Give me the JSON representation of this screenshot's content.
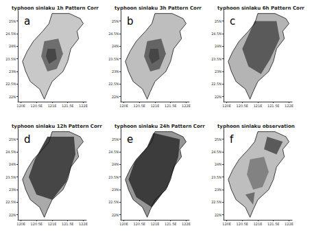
{
  "chart_data": [
    {
      "type": "map",
      "title": "typhoon sinlaku 1h Pattern Corr",
      "annotation": "a",
      "xlim": [
        119.9,
        122.1
      ],
      "ylim": [
        21.8,
        25.4
      ],
      "xticks": [
        {
          "value": 120,
          "label": "120E"
        },
        {
          "value": 120.5,
          "label": "120.5E"
        },
        {
          "value": 121,
          "label": "121E"
        },
        {
          "value": 121.5,
          "label": "121.5E"
        },
        {
          "value": 122,
          "label": "122E"
        }
      ],
      "yticks": [
        {
          "value": 22,
          "label": "22N"
        },
        {
          "value": 22.5,
          "label": "22.5N"
        },
        {
          "value": 23,
          "label": "23N"
        },
        {
          "value": 23.5,
          "label": "23.5N"
        },
        {
          "value": 24,
          "label": "24N"
        },
        {
          "value": 24.5,
          "label": "24.5N"
        },
        {
          "value": 25,
          "label": "25N"
        }
      ],
      "outline": [
        [
          121.0,
          25.3
        ],
        [
          121.55,
          25.3
        ],
        [
          121.9,
          25.1
        ],
        [
          122.0,
          24.9
        ],
        [
          121.8,
          24.6
        ],
        [
          121.85,
          24.3
        ],
        [
          121.6,
          23.9
        ],
        [
          121.5,
          23.4
        ],
        [
          121.35,
          23.0
        ],
        [
          121.0,
          22.6
        ],
        [
          120.85,
          22.2
        ],
        [
          120.75,
          21.9
        ],
        [
          120.6,
          22.3
        ],
        [
          120.3,
          22.6
        ],
        [
          120.15,
          23.0
        ],
        [
          120.05,
          23.4
        ],
        [
          120.2,
          23.8
        ],
        [
          120.4,
          24.2
        ],
        [
          120.7,
          24.6
        ],
        [
          120.9,
          24.9
        ]
      ],
      "land_level": 0.25,
      "regions": [
        {
          "level": 0.7,
          "polygon": [
            [
              120.75,
              24.2
            ],
            [
              121.2,
              24.3
            ],
            [
              121.35,
              23.7
            ],
            [
              121.15,
              23.1
            ],
            [
              120.85,
              23.0
            ],
            [
              120.65,
              23.6
            ]
          ]
        },
        {
          "level": 0.9,
          "polygon": [
            [
              120.85,
              23.9
            ],
            [
              121.1,
              23.9
            ],
            [
              121.15,
              23.5
            ],
            [
              120.9,
              23.3
            ],
            [
              120.8,
              23.6
            ]
          ]
        }
      ]
    },
    {
      "type": "map",
      "title": "typhoon sinlaku 3h Pattern Corr",
      "annotation": "b",
      "xlim": [
        119.9,
        122.1
      ],
      "ylim": [
        21.8,
        25.4
      ],
      "xticks": [
        {
          "value": 120,
          "label": "120E"
        },
        {
          "value": 120.5,
          "label": "120.5E"
        },
        {
          "value": 121,
          "label": "121E"
        },
        {
          "value": 121.5,
          "label": "121.5E"
        },
        {
          "value": 122,
          "label": "122E"
        }
      ],
      "yticks": [
        {
          "value": 22,
          "label": "22N"
        },
        {
          "value": 22.5,
          "label": "22.5N"
        },
        {
          "value": 23,
          "label": "23N"
        },
        {
          "value": 23.5,
          "label": "23.5N"
        },
        {
          "value": 24,
          "label": "24N"
        },
        {
          "value": 24.5,
          "label": "24.5N"
        },
        {
          "value": 25,
          "label": "25N"
        }
      ],
      "outline": [
        [
          121.0,
          25.3
        ],
        [
          121.55,
          25.3
        ],
        [
          121.9,
          25.1
        ],
        [
          122.0,
          24.9
        ],
        [
          121.8,
          24.6
        ],
        [
          121.85,
          24.3
        ],
        [
          121.6,
          23.9
        ],
        [
          121.5,
          23.4
        ],
        [
          121.35,
          23.0
        ],
        [
          121.0,
          22.6
        ],
        [
          120.85,
          22.2
        ],
        [
          120.75,
          21.9
        ],
        [
          120.6,
          22.3
        ],
        [
          120.3,
          22.6
        ],
        [
          120.15,
          23.0
        ],
        [
          120.05,
          23.4
        ],
        [
          120.2,
          23.8
        ],
        [
          120.4,
          24.2
        ],
        [
          120.7,
          24.6
        ],
        [
          120.9,
          24.9
        ]
      ],
      "land_level": 0.3,
      "regions": [
        {
          "level": 0.75,
          "polygon": [
            [
              120.75,
              24.2
            ],
            [
              121.2,
              24.3
            ],
            [
              121.35,
              23.7
            ],
            [
              121.15,
              23.1
            ],
            [
              120.85,
              23.0
            ],
            [
              120.65,
              23.6
            ]
          ]
        },
        {
          "level": 0.9,
          "polygon": [
            [
              120.85,
              23.9
            ],
            [
              121.1,
              23.9
            ],
            [
              121.15,
              23.5
            ],
            [
              120.9,
              23.3
            ],
            [
              120.8,
              23.6
            ]
          ]
        }
      ]
    },
    {
      "type": "map",
      "title": "typhoon sinlaku 6h Pattern Corr",
      "annotation": "c",
      "xlim": [
        119.9,
        122.1
      ],
      "ylim": [
        21.8,
        25.4
      ],
      "xticks": [
        {
          "value": 120,
          "label": "120E"
        },
        {
          "value": 120.5,
          "label": "120.5E"
        },
        {
          "value": 121,
          "label": "121E"
        },
        {
          "value": 121.5,
          "label": "121.5E"
        },
        {
          "value": 122,
          "label": "122E"
        }
      ],
      "yticks": [
        {
          "value": 22,
          "label": "22N"
        },
        {
          "value": 22.5,
          "label": "22.5N"
        },
        {
          "value": 23,
          "label": "23N"
        },
        {
          "value": 23.5,
          "label": "23.5N"
        },
        {
          "value": 24,
          "label": "24N"
        },
        {
          "value": 24.5,
          "label": "24.5N"
        },
        {
          "value": 25,
          "label": "25N"
        }
      ],
      "outline": [
        [
          121.0,
          25.3
        ],
        [
          121.55,
          25.3
        ],
        [
          121.9,
          25.1
        ],
        [
          122.0,
          24.9
        ],
        [
          121.8,
          24.6
        ],
        [
          121.85,
          24.3
        ],
        [
          121.6,
          23.9
        ],
        [
          121.5,
          23.4
        ],
        [
          121.35,
          23.0
        ],
        [
          121.0,
          22.6
        ],
        [
          120.85,
          22.2
        ],
        [
          120.75,
          21.9
        ],
        [
          120.6,
          22.3
        ],
        [
          120.3,
          22.6
        ],
        [
          120.15,
          23.0
        ],
        [
          120.05,
          23.4
        ],
        [
          120.2,
          23.8
        ],
        [
          120.4,
          24.2
        ],
        [
          120.7,
          24.6
        ],
        [
          120.9,
          24.9
        ]
      ],
      "land_level": 0.35,
      "regions": [
        {
          "level": 0.8,
          "polygon": [
            [
              120.9,
              25.0
            ],
            [
              121.6,
              25.0
            ],
            [
              121.7,
              24.3
            ],
            [
              121.4,
              23.5
            ],
            [
              121.1,
              22.9
            ],
            [
              120.7,
              23.2
            ],
            [
              120.5,
              23.9
            ]
          ]
        }
      ]
    },
    {
      "type": "map",
      "title": "typhoon sinlaku 12h Pattern Corr",
      "annotation": "d",
      "xlim": [
        119.9,
        122.1
      ],
      "ylim": [
        21.8,
        25.4
      ],
      "xticks": [
        {
          "value": 120,
          "label": "120E"
        },
        {
          "value": 120.5,
          "label": "120.5E"
        },
        {
          "value": 121,
          "label": "121E"
        },
        {
          "value": 121.5,
          "label": "121.5E"
        },
        {
          "value": 122,
          "label": "122E"
        }
      ],
      "yticks": [
        {
          "value": 22,
          "label": "22N"
        },
        {
          "value": 22.5,
          "label": "22.5N"
        },
        {
          "value": 23,
          "label": "23N"
        },
        {
          "value": 23.5,
          "label": "23.5N"
        },
        {
          "value": 24,
          "label": "24N"
        },
        {
          "value": 24.5,
          "label": "24.5N"
        },
        {
          "value": 25,
          "label": "25N"
        }
      ],
      "outline": [
        [
          121.0,
          25.3
        ],
        [
          121.55,
          25.3
        ],
        [
          121.9,
          25.1
        ],
        [
          122.0,
          24.9
        ],
        [
          121.8,
          24.6
        ],
        [
          121.85,
          24.3
        ],
        [
          121.6,
          23.9
        ],
        [
          121.5,
          23.4
        ],
        [
          121.35,
          23.0
        ],
        [
          121.0,
          22.6
        ],
        [
          120.85,
          22.2
        ],
        [
          120.75,
          21.9
        ],
        [
          120.6,
          22.3
        ],
        [
          120.3,
          22.6
        ],
        [
          120.15,
          23.0
        ],
        [
          120.05,
          23.4
        ],
        [
          120.2,
          23.8
        ],
        [
          120.4,
          24.2
        ],
        [
          120.7,
          24.6
        ],
        [
          120.9,
          24.9
        ]
      ],
      "land_level": 0.4,
      "regions": [
        {
          "level": 0.9,
          "polygon": [
            [
              120.85,
              25.1
            ],
            [
              121.7,
              25.1
            ],
            [
              121.75,
              24.4
            ],
            [
              121.45,
              23.3
            ],
            [
              121.0,
              22.6
            ],
            [
              120.5,
              22.8
            ],
            [
              120.25,
              23.5
            ],
            [
              120.45,
              24.2
            ]
          ]
        }
      ]
    },
    {
      "type": "map",
      "title": "typhoon sinlaku 24h Pattern Corr",
      "annotation": "e",
      "xlim": [
        119.9,
        122.1
      ],
      "ylim": [
        21.8,
        25.4
      ],
      "xticks": [
        {
          "value": 120,
          "label": "120E"
        },
        {
          "value": 120.5,
          "label": "120.5E"
        },
        {
          "value": 121,
          "label": "121E"
        },
        {
          "value": 121.5,
          "label": "121.5E"
        },
        {
          "value": 122,
          "label": "122E"
        }
      ],
      "yticks": [
        {
          "value": 22,
          "label": "22N"
        },
        {
          "value": 22.5,
          "label": "22.5N"
        },
        {
          "value": 23,
          "label": "23N"
        },
        {
          "value": 23.5,
          "label": "23.5N"
        },
        {
          "value": 24,
          "label": "24N"
        },
        {
          "value": 24.5,
          "label": "24.5N"
        },
        {
          "value": 25,
          "label": "25N"
        }
      ],
      "outline": [
        [
          121.0,
          25.3
        ],
        [
          121.55,
          25.3
        ],
        [
          121.9,
          25.1
        ],
        [
          122.0,
          24.9
        ],
        [
          121.8,
          24.6
        ],
        [
          121.85,
          24.3
        ],
        [
          121.6,
          23.9
        ],
        [
          121.5,
          23.4
        ],
        [
          121.35,
          23.0
        ],
        [
          121.0,
          22.6
        ],
        [
          120.85,
          22.2
        ],
        [
          120.75,
          21.9
        ],
        [
          120.6,
          22.3
        ],
        [
          120.3,
          22.6
        ],
        [
          120.15,
          23.0
        ],
        [
          120.05,
          23.4
        ],
        [
          120.2,
          23.8
        ],
        [
          120.4,
          24.2
        ],
        [
          120.7,
          24.6
        ],
        [
          120.9,
          24.9
        ]
      ],
      "land_level": 0.5,
      "regions": [
        {
          "level": 0.95,
          "polygon": [
            [
              120.95,
              25.25
            ],
            [
              121.8,
              25.0
            ],
            [
              121.75,
              24.3
            ],
            [
              121.4,
              23.1
            ],
            [
              120.9,
              22.3
            ],
            [
              120.4,
              22.7
            ],
            [
              120.15,
              23.4
            ],
            [
              120.35,
              24.1
            ],
            [
              120.75,
              24.7
            ]
          ]
        }
      ]
    },
    {
      "type": "map",
      "title": "typhoon sinlaku observation",
      "annotation": "f",
      "xlim": [
        119.9,
        122.1
      ],
      "ylim": [
        21.8,
        25.4
      ],
      "xticks": [
        {
          "value": 120,
          "label": "120E"
        },
        {
          "value": 120.5,
          "label": "120.5E"
        },
        {
          "value": 121,
          "label": "121E"
        },
        {
          "value": 121.5,
          "label": "121.5E"
        },
        {
          "value": 122,
          "label": "122E"
        }
      ],
      "yticks": [
        {
          "value": 22,
          "label": "22N"
        },
        {
          "value": 22.5,
          "label": "22.5N"
        },
        {
          "value": 23,
          "label": "23N"
        },
        {
          "value": 23.5,
          "label": "23.5N"
        },
        {
          "value": 24,
          "label": "24N"
        },
        {
          "value": 24.5,
          "label": "24.5N"
        },
        {
          "value": 25,
          "label": "25N"
        }
      ],
      "outline": [
        [
          121.0,
          25.3
        ],
        [
          121.55,
          25.3
        ],
        [
          121.9,
          25.1
        ],
        [
          122.0,
          24.9
        ],
        [
          121.8,
          24.6
        ],
        [
          121.85,
          24.3
        ],
        [
          121.6,
          23.9
        ],
        [
          121.5,
          23.4
        ],
        [
          121.35,
          23.0
        ],
        [
          121.0,
          22.6
        ],
        [
          120.85,
          22.2
        ],
        [
          120.75,
          21.9
        ],
        [
          120.6,
          22.3
        ],
        [
          120.3,
          22.6
        ],
        [
          120.15,
          23.0
        ],
        [
          120.05,
          23.4
        ],
        [
          120.2,
          23.8
        ],
        [
          120.4,
          24.2
        ],
        [
          120.7,
          24.6
        ],
        [
          120.9,
          24.9
        ]
      ],
      "land_level": 0.3,
      "regions": [
        {
          "level": 0.8,
          "polygon": [
            [
              121.3,
              25.1
            ],
            [
              121.8,
              24.9
            ],
            [
              121.6,
              24.4
            ],
            [
              121.2,
              24.6
            ]
          ]
        },
        {
          "level": 0.6,
          "polygon": [
            [
              120.75,
              24.2
            ],
            [
              121.2,
              24.3
            ],
            [
              121.35,
              23.7
            ],
            [
              121.15,
              23.1
            ],
            [
              120.85,
              23.0
            ],
            [
              120.65,
              23.6
            ]
          ]
        },
        {
          "level": 0.7,
          "polygon": [
            [
              120.6,
              22.8
            ],
            [
              120.9,
              22.9
            ],
            [
              120.85,
              22.4
            ]
          ]
        }
      ]
    }
  ]
}
